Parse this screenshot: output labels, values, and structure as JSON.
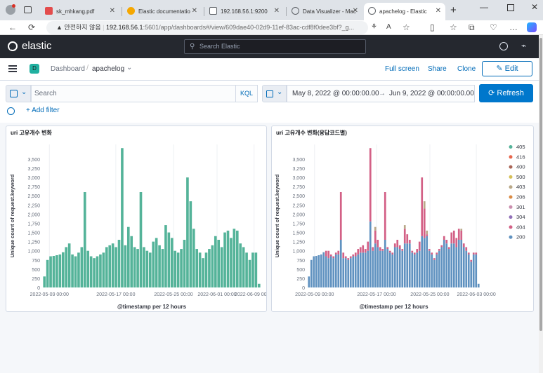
{
  "browser": {
    "tabs": [
      {
        "title": "sk_mhkang.pdf",
        "color": "#e34c4c"
      },
      {
        "title": "Elastic documentatio",
        "color": "#f5a700"
      },
      {
        "title": "192.168.56.1:9200",
        "color": "#5f6368"
      },
      {
        "title": "Data Visualizer - Mac",
        "color": "#5f6368"
      },
      {
        "title": "apachelog - Elastic",
        "color": "#5f6368"
      }
    ],
    "url_warning": "안전하지 않음",
    "url_host": "192.168.56.1",
    "url_path": ":5601/app/dashboards#/view/609dae40-02d9-11ef-83ac-cdf8f0dee3bf?_g..."
  },
  "kibana": {
    "brand": "elastic",
    "search_placeholder": "Search Elastic",
    "space_badge": "D",
    "breadcrumb_root": "Dashboard",
    "breadcrumb_current": "apachelog",
    "full_screen": "Full screen",
    "share": "Share",
    "clone": "Clone",
    "edit": "Edit",
    "query_placeholder": "Search",
    "kql": "KQL",
    "time_start": "May 8, 2022 @ 00:00:00.00",
    "time_arrow": "→",
    "time_end": "Jun 9, 2022 @ 00:00:00.00",
    "refresh": "Refresh",
    "add_filter": "+ Add filter"
  },
  "colors": {
    "accent": "#006bb8",
    "green": "#54b399",
    "blue": "#6092c0",
    "pink": "#d36086"
  },
  "chart_data": [
    {
      "type": "bar",
      "title": "uri 고유개수 변화",
      "xlabel": "@timestamp per 12 hours",
      "ylabel": "Unique count of request.keyword",
      "ylim": [
        0,
        3900
      ],
      "yticks": [
        0,
        250,
        500,
        750,
        1000,
        1250,
        1500,
        1750,
        2000,
        2250,
        2500,
        2750,
        3000,
        3250,
        3500
      ],
      "xticks": [
        "2022-05-09 00:00",
        "2022-05-17 00:00",
        "2022-05-25 00:00",
        "2022-06-01 00:00",
        "2022-06-09 00:00"
      ],
      "values": [
        300,
        750,
        850,
        860,
        880,
        900,
        960,
        1100,
        1200,
        900,
        850,
        950,
        1100,
        2600,
        1000,
        850,
        800,
        850,
        900,
        950,
        1100,
        1150,
        1200,
        1100,
        1300,
        3800,
        1150,
        1650,
        1400,
        1100,
        1050,
        2600,
        1100,
        1000,
        950,
        1250,
        1350,
        1150,
        1050,
        1700,
        1500,
        1350,
        1000,
        950,
        1050,
        1300,
        3000,
        2350,
        1600,
        1050,
        950,
        800,
        950,
        1050,
        1150,
        1400,
        1300,
        1100,
        1500,
        1550,
        1350,
        1600,
        1550,
        1200,
        1100,
        950,
        750,
        950,
        950,
        100
      ]
    },
    {
      "type": "bar",
      "title": "uri 고유개수 변화(응답코드별)",
      "xlabel": "@timestamp per 12 hours",
      "ylabel": "Unique count of request.keyword",
      "ylim": [
        0,
        3900
      ],
      "yticks": [
        0,
        250,
        500,
        750,
        1000,
        1250,
        1500,
        1750,
        2000,
        2250,
        2500,
        2750,
        3000,
        3250,
        3500
      ],
      "xticks": [
        "2022-05-09 00:00",
        "2022-05-17 00:00",
        "2022-05-25 00:00",
        "2022-06-03 00:00"
      ],
      "legend": [
        "405",
        "416",
        "400",
        "500",
        "403",
        "206",
        "301",
        "304",
        "404",
        "200"
      ],
      "legend_colors": [
        "#54b399",
        "#e7664c",
        "#aa6556",
        "#d6bf57",
        "#b9a888",
        "#da8b45",
        "#ca8eae",
        "#9170b8",
        "#d36086",
        "#6092c0"
      ],
      "series": [
        {
          "name": "200",
          "values": [
            300,
            750,
            850,
            860,
            880,
            900,
            960,
            850,
            800,
            850,
            800,
            900,
            900,
            1300,
            800,
            800,
            750,
            800,
            850,
            850,
            900,
            950,
            950,
            950,
            1000,
            1800,
            1000,
            1200,
            1100,
            1000,
            1000,
            1300,
            1050,
            950,
            900,
            1100,
            1100,
            1050,
            1000,
            1200,
            1200,
            1200,
            950,
            900,
            950,
            1000,
            1400,
            1350,
            1400,
            1000,
            900,
            750,
            900,
            1000,
            1100,
            1300,
            1200,
            1050,
            1200,
            1200,
            1100,
            1300,
            1300,
            1100,
            1000,
            900,
            700,
            900,
            900,
            100
          ]
        },
        {
          "name": "404",
          "values": [
            0,
            0,
            0,
            0,
            0,
            0,
            0,
            150,
            200,
            50,
            50,
            50,
            100,
            1300,
            150,
            50,
            50,
            50,
            50,
            100,
            150,
            150,
            200,
            100,
            250,
            2000,
            100,
            350,
            200,
            100,
            50,
            1300,
            50,
            50,
            50,
            100,
            200,
            100,
            50,
            400,
            250,
            100,
            50,
            50,
            100,
            250,
            1600,
            800,
            50,
            50,
            50,
            50,
            50,
            50,
            50,
            100,
            100,
            50,
            300,
            350,
            250,
            300,
            250,
            100,
            100,
            50,
            50,
            50,
            50,
            0
          ]
        },
        {
          "name": "403",
          "values": [
            0,
            0,
            0,
            0,
            0,
            0,
            0,
            0,
            0,
            0,
            0,
            0,
            0,
            0,
            0,
            0,
            0,
            0,
            0,
            0,
            0,
            0,
            0,
            0,
            0,
            0,
            0,
            100,
            0,
            0,
            0,
            0,
            0,
            0,
            0,
            0,
            0,
            0,
            0,
            100,
            0,
            0,
            0,
            0,
            0,
            0,
            0,
            200,
            100,
            0,
            0,
            0,
            0,
            0,
            0,
            0,
            0,
            0,
            0,
            0,
            0,
            0,
            50,
            0,
            0,
            0,
            0,
            0,
            0,
            0
          ]
        }
      ]
    }
  ]
}
